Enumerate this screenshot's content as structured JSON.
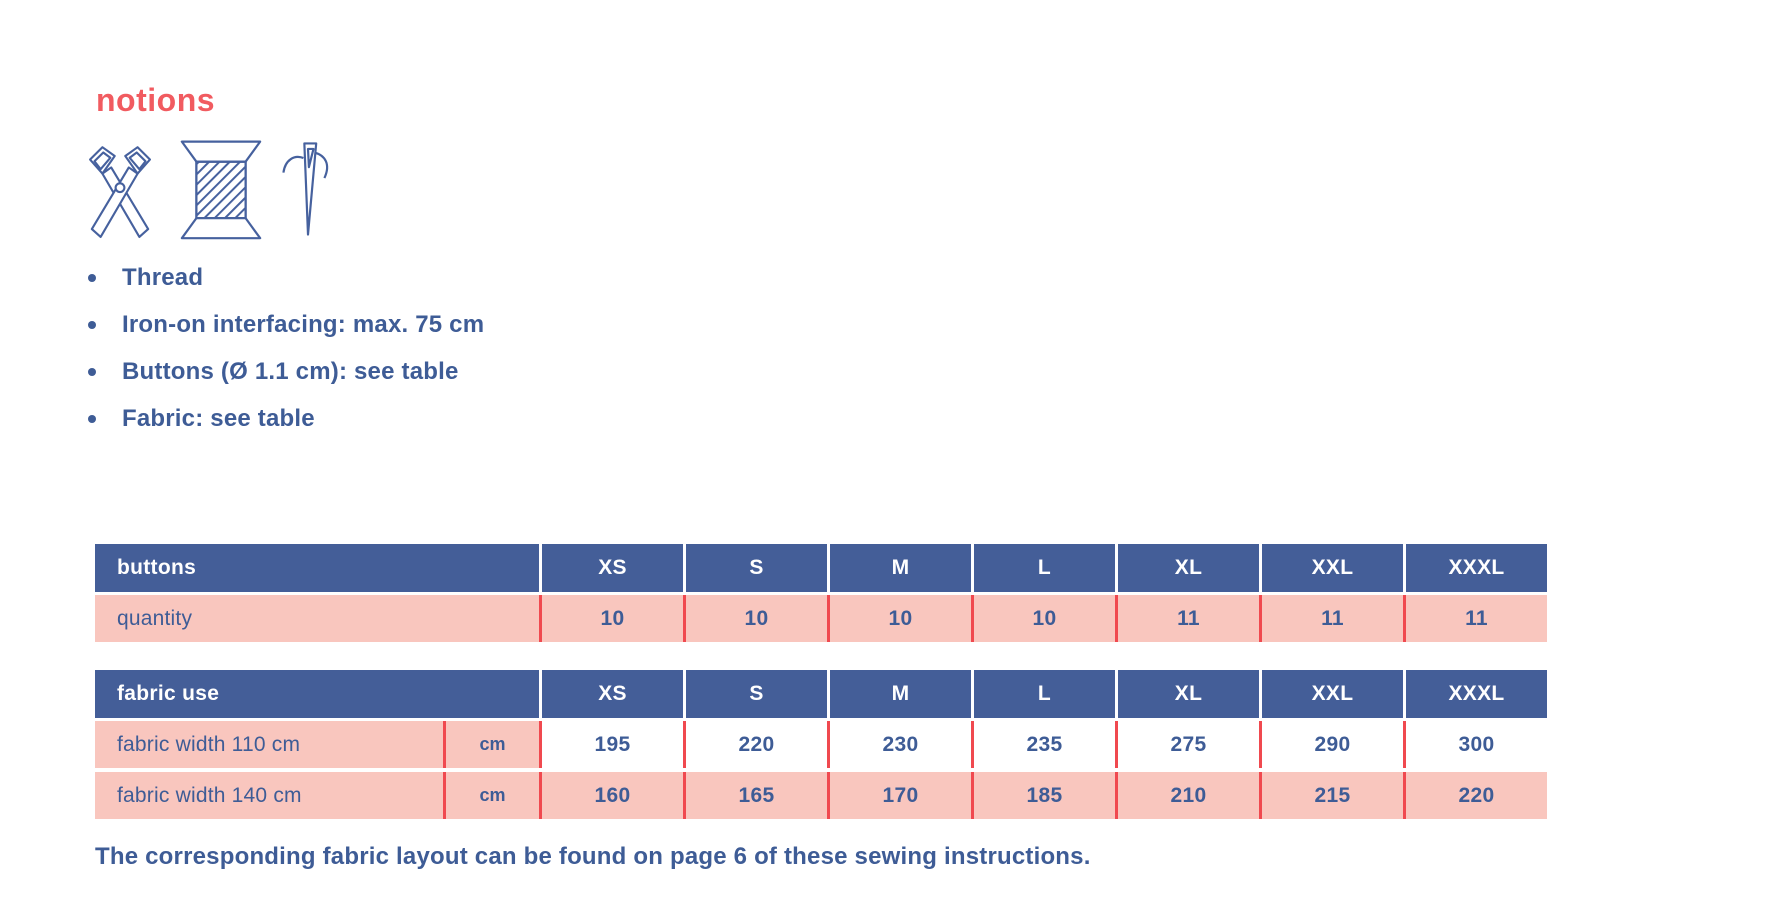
{
  "page": {
    "title": "notions",
    "footer": "The corresponding fabric layout can be found on page 6 of these sewing instructions."
  },
  "colors": {
    "accent_coral": "#F15B60",
    "navy_header": "#445E98",
    "text_blue": "#3E5C96",
    "row_pink": "#F9C6BE",
    "divider_red": "#F0494F"
  },
  "icons": [
    {
      "name": "scissors-icon"
    },
    {
      "name": "thread-spool-icon"
    },
    {
      "name": "needle-icon"
    }
  ],
  "bullets": [
    "Thread",
    "Iron-on interfacing: max. 75 cm",
    "Buttons (Ø 1.1 cm): see table",
    "Fabric: see table"
  ],
  "tables": [
    {
      "id": "buttons-table",
      "header_label": "buttons",
      "sizes": [
        "XS",
        "S",
        "M",
        "L",
        "XL",
        "XXL",
        "XXXL"
      ],
      "rows": [
        {
          "label": "quantity",
          "unit": null,
          "bg": "pink",
          "values": [
            "10",
            "10",
            "10",
            "10",
            "11",
            "11",
            "11"
          ]
        }
      ]
    },
    {
      "id": "fabric-table",
      "header_label": "fabric use",
      "sizes": [
        "XS",
        "S",
        "M",
        "L",
        "XL",
        "XXL",
        "XXXL"
      ],
      "rows": [
        {
          "label": "fabric width 110 cm",
          "unit": "cm",
          "bg": "white",
          "values": [
            "195",
            "220",
            "230",
            "235",
            "275",
            "290",
            "300"
          ]
        },
        {
          "label": "fabric width 140 cm",
          "unit": "cm",
          "bg": "pink",
          "values": [
            "160",
            "165",
            "170",
            "185",
            "210",
            "215",
            "220"
          ]
        }
      ]
    }
  ]
}
